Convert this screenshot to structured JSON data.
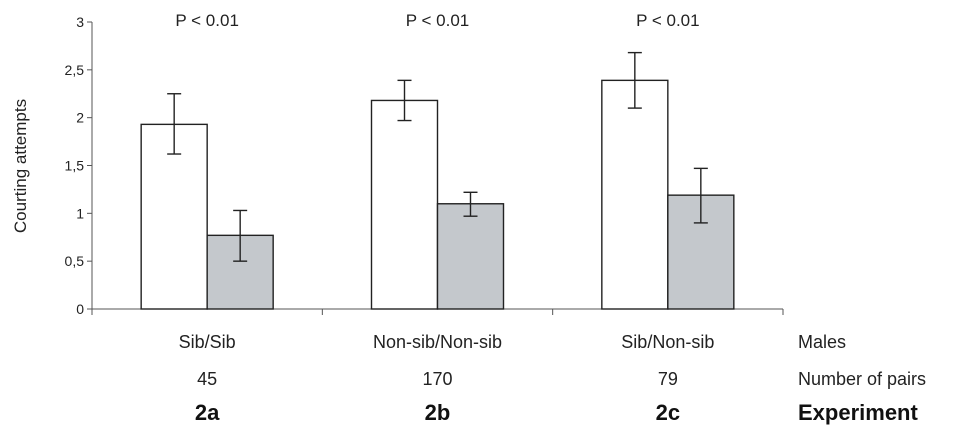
{
  "chart_data": {
    "type": "bar",
    "title": "",
    "xlabel": "",
    "ylabel": "Courting attempts",
    "ylim": [
      0,
      3
    ],
    "yticks": [
      "0",
      "0,5",
      "1",
      "1,5",
      "2",
      "2,5",
      "3"
    ],
    "grid": false,
    "legend": "none",
    "groups": [
      {
        "males": "Sib/Sib",
        "pairs": "45",
        "experiment": "2a",
        "pvalue": "P < 0.01",
        "bars": [
          {
            "value": 1.93,
            "err_low": 1.62,
            "err_high": 2.25,
            "color": "#ffffff"
          },
          {
            "value": 0.77,
            "err_low": 0.5,
            "err_high": 1.03,
            "color": "#c4c8cc"
          }
        ]
      },
      {
        "males": "Non-sib/Non-sib",
        "pairs": "170",
        "experiment": "2b",
        "pvalue": "P < 0.01",
        "bars": [
          {
            "value": 2.18,
            "err_low": 1.97,
            "err_high": 2.39,
            "color": "#ffffff"
          },
          {
            "value": 1.1,
            "err_low": 0.97,
            "err_high": 1.22,
            "color": "#c4c8cc"
          }
        ]
      },
      {
        "males": "Sib/Non-sib",
        "pairs": "79",
        "experiment": "2c",
        "pvalue": "P < 0.01",
        "bars": [
          {
            "value": 2.39,
            "err_low": 2.1,
            "err_high": 2.68,
            "color": "#ffffff"
          },
          {
            "value": 1.19,
            "err_low": 0.9,
            "err_high": 1.47,
            "color": "#c4c8cc"
          }
        ]
      }
    ],
    "row_titles": {
      "males": "Males",
      "pairs": "Number of pairs",
      "experiment": "Experiment"
    }
  }
}
